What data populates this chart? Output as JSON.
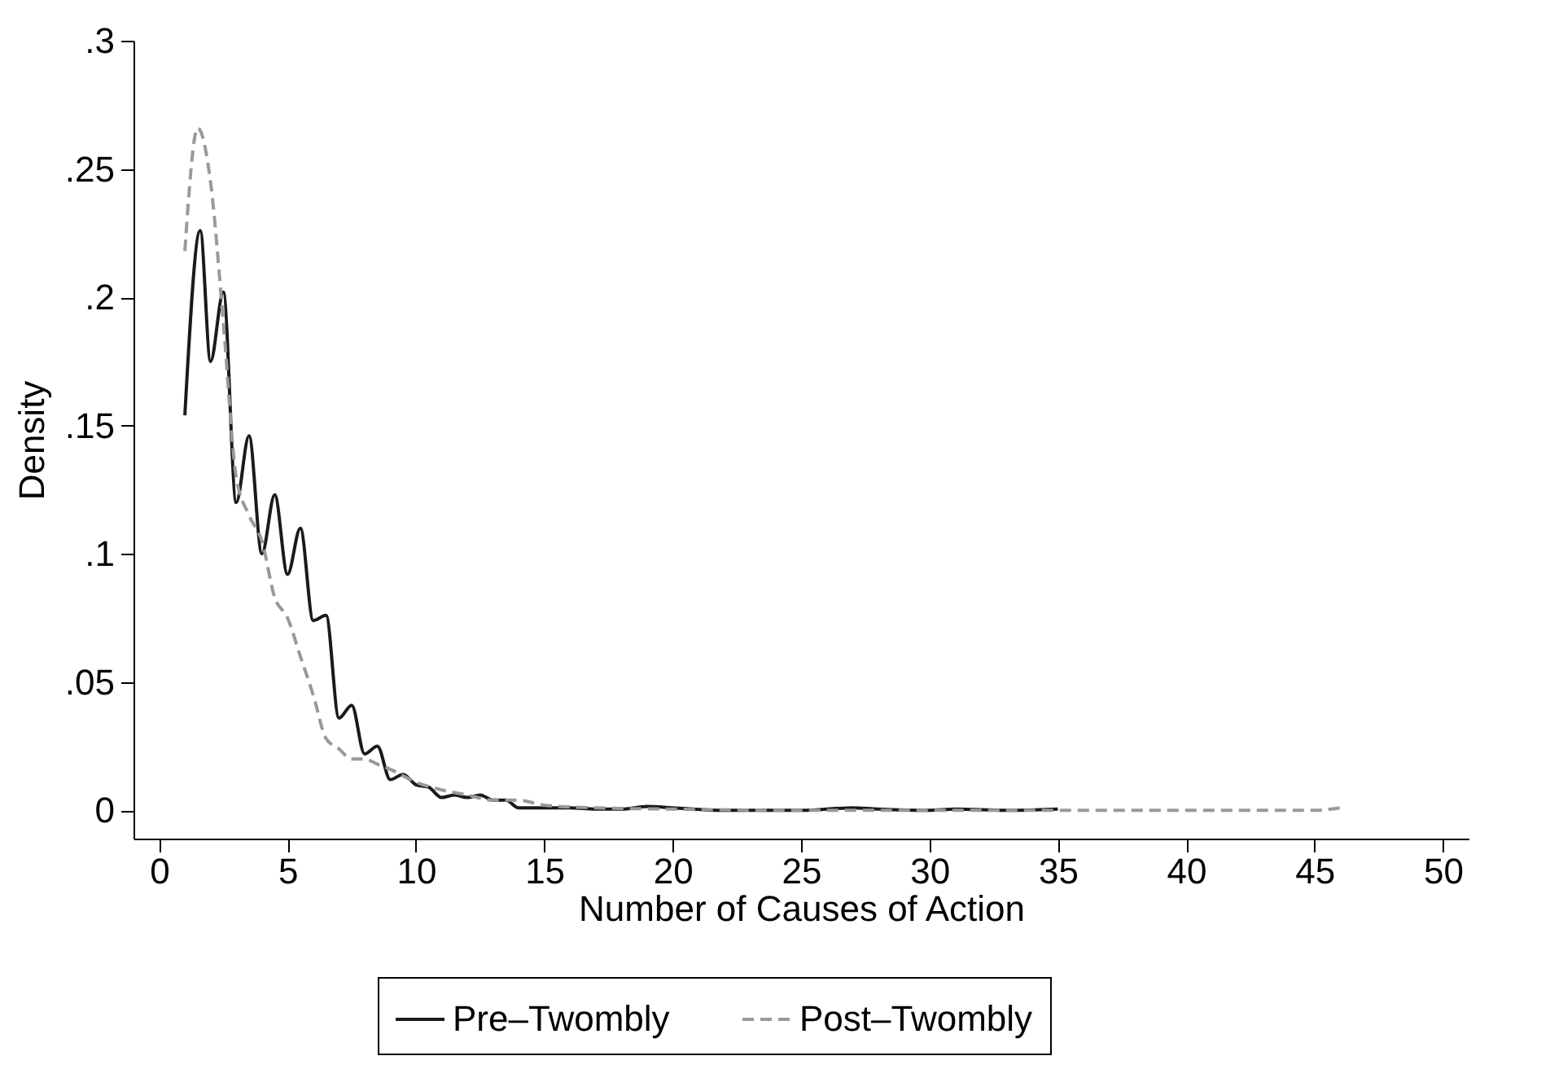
{
  "chart_data": {
    "type": "line",
    "xlabel": "Number of Causes of Action",
    "ylabel": "Density",
    "xlim": [
      -1,
      51
    ],
    "xticks": [
      0,
      5,
      10,
      15,
      20,
      25,
      30,
      35,
      40,
      45,
      50
    ],
    "ylim": [
      -0.011,
      0.3
    ],
    "yticks": [
      0,
      {
        "value": 0.05,
        "label": ".05"
      },
      {
        "value": 0.1,
        "label": ".1"
      },
      {
        "value": 0.15,
        "label": ".15"
      },
      {
        "value": 0.2,
        "label": ".2"
      },
      {
        "value": 0.25,
        "label": ".25"
      },
      {
        "value": 0.3,
        "label": ".3"
      }
    ],
    "grid": false,
    "legend": "bottom",
    "marker": "none",
    "series": [
      {
        "name": "Pre–Twombly",
        "color": "#1a1a1a",
        "line_style": "solid",
        "x": [
          1,
          1.6,
          2.0,
          2.5,
          3.0,
          3.5,
          4.0,
          4.5,
          5.0,
          5.5,
          6.0,
          6.5,
          7.0,
          7.5,
          8.0,
          8.5,
          9.0,
          9.5,
          10,
          10.5,
          11,
          11.5,
          12,
          12.5,
          13,
          13.5,
          14,
          15,
          16,
          17,
          18,
          19,
          20,
          22,
          25,
          27,
          28,
          30,
          31,
          33,
          35
        ],
        "values": [
          0.154,
          0.226,
          0.175,
          0.202,
          0.12,
          0.146,
          0.1,
          0.123,
          0.092,
          0.11,
          0.074,
          0.076,
          0.036,
          0.041,
          0.022,
          0.025,
          0.012,
          0.014,
          0.01,
          0.009,
          0.005,
          0.006,
          0.005,
          0.006,
          0.004,
          0.004,
          0.001,
          0.001,
          0.001,
          0.0005,
          0.0005,
          0.0015,
          0.001,
          0,
          0,
          0.001,
          0.0005,
          0,
          0.0005,
          0,
          0.0005
        ]
      },
      {
        "name": "Post–Twombly",
        "color": "#999999",
        "line_style": "dashed",
        "x": [
          1,
          1.5,
          2.0,
          2.5,
          3.0,
          3.5,
          4.0,
          4.5,
          5.0,
          5.5,
          6.0,
          6.5,
          7.0,
          7.5,
          8.0,
          8.5,
          9.0,
          10,
          11,
          12,
          13,
          14,
          15,
          17,
          20,
          25,
          30,
          35,
          40,
          45,
          46
        ],
        "values": [
          0.218,
          0.266,
          0.245,
          0.19,
          0.13,
          0.115,
          0.105,
          0.083,
          0.075,
          0.06,
          0.045,
          0.028,
          0.024,
          0.02,
          0.02,
          0.018,
          0.016,
          0.011,
          0.008,
          0.006,
          0.004,
          0.004,
          0.002,
          0.001,
          0.0005,
          0,
          0,
          0,
          0,
          0,
          0.001
        ]
      }
    ]
  }
}
